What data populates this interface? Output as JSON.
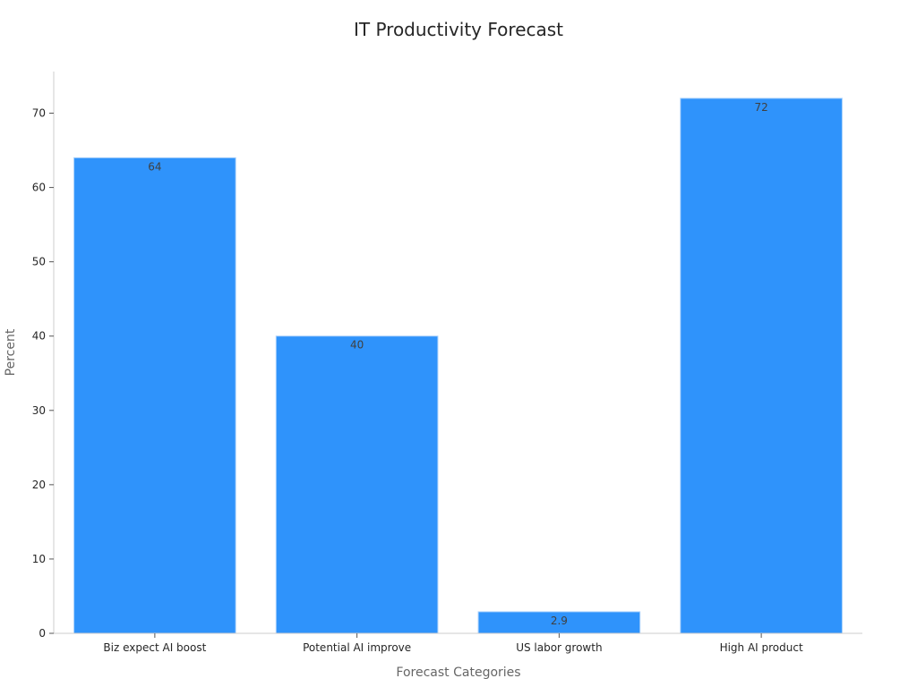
{
  "chart_data": {
    "type": "bar",
    "title": "IT Productivity Forecast",
    "xlabel": "Forecast Categories",
    "ylabel": "Percent",
    "categories": [
      "Biz expect AI boost",
      "Potential AI improve",
      "US labor growth",
      "High AI product"
    ],
    "values": [
      64,
      40,
      2.9,
      72
    ],
    "data_labels": [
      "64",
      "40",
      "2.9",
      "72"
    ],
    "yticks": [
      0,
      10,
      20,
      30,
      40,
      50,
      60,
      70
    ],
    "ylim": [
      0,
      75.6
    ],
    "grid": false,
    "legend": "none",
    "bar_color": "#2f93fb"
  }
}
